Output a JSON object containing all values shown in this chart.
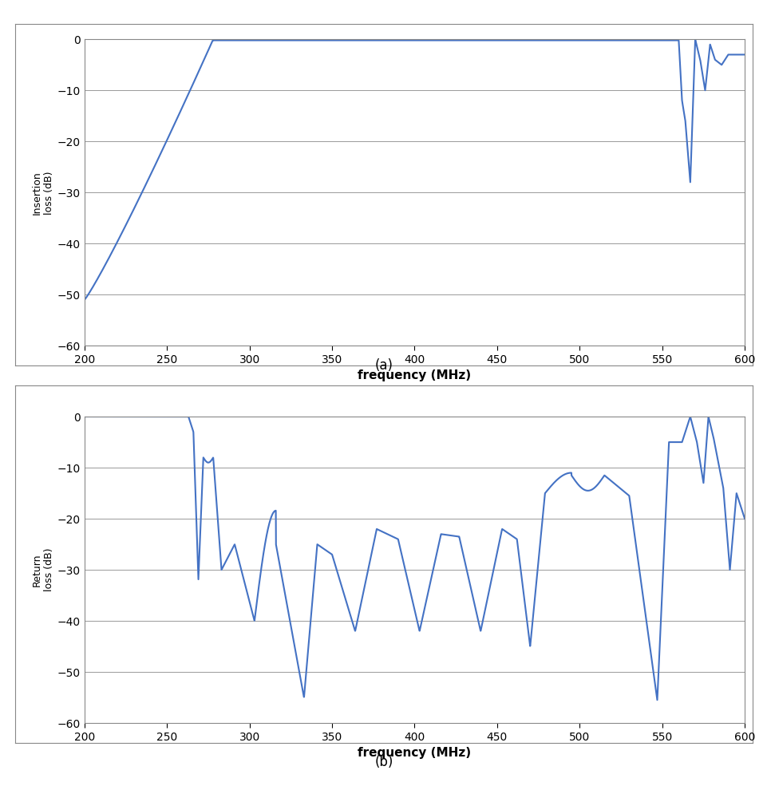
{
  "ylabel_a": "Insertion\nloss (dB)",
  "ylabel_b": "Return\nloss (dB)",
  "xlabel": "frequency (MHz)",
  "caption_a": "(a)",
  "caption_b": "(b)",
  "xmin": 200,
  "xmax": 600,
  "ymin": -60,
  "ymax": 0,
  "yticks": [
    0,
    -10,
    -20,
    -30,
    -40,
    -50,
    -60
  ],
  "xticks": [
    200,
    250,
    300,
    350,
    400,
    450,
    500,
    550,
    600
  ],
  "line_color": "#4472C4",
  "line_width": 1.5,
  "background_color": "#ffffff",
  "grid_color": "#999999"
}
